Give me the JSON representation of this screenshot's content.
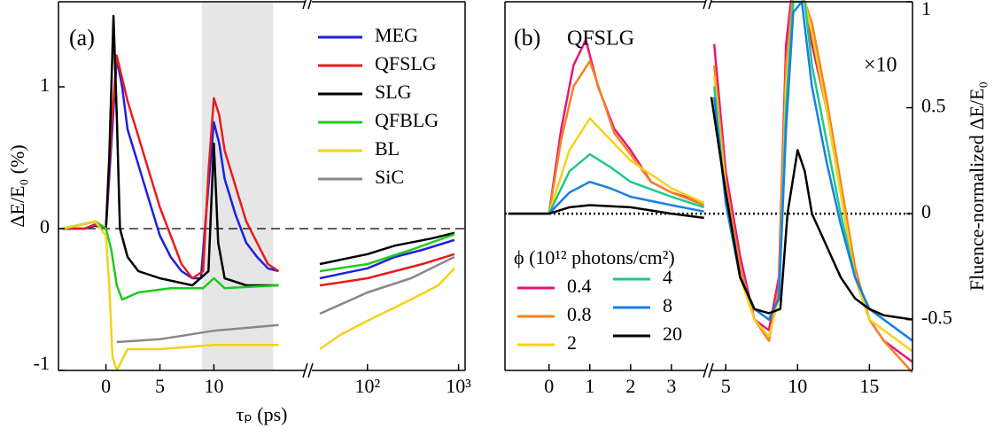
{
  "chart_data": [
    {
      "type": "line",
      "panel_label": "(a)",
      "xlabel": "τₚ (ps)",
      "ylabel": "ΔE/E₀ (%)",
      "x_segments": [
        [
          -4.4,
          18.5
        ],
        [
          24.5,
          1180
        ]
      ],
      "x_scales": [
        "linear",
        "log"
      ],
      "xticks": [
        0,
        5,
        10,
        {
          "value": 100,
          "label": "10²"
        },
        {
          "value": 1000,
          "label": "10³"
        }
      ],
      "ylim": [
        -1,
        1.6
      ],
      "yticks": [
        -1,
        0,
        1
      ],
      "zero_line": "dashed",
      "shaded_x": [
        8.9,
        15.5
      ],
      "legend": "upper right",
      "series": [
        {
          "name": "MEG",
          "color": "#1f1fe0",
          "x": [
            -4,
            -2,
            -1,
            0,
            0.5,
            1,
            1.5,
            2,
            3,
            4,
            5,
            6,
            7,
            8,
            8.8,
            9.5,
            10,
            10.5,
            11,
            12,
            13,
            14,
            15,
            16,
            null,
            30,
            50,
            100,
            200,
            400,
            900
          ],
          "values": [
            0,
            0,
            0.02,
            0,
            0.6,
            1.2,
            1.0,
            0.7,
            0.45,
            0.2,
            -0.05,
            -0.2,
            -0.3,
            -0.35,
            -0.35,
            0.3,
            0.75,
            0.6,
            0.35,
            0.1,
            -0.1,
            -0.2,
            -0.28,
            -0.3,
            null,
            -0.35,
            -0.32,
            -0.28,
            -0.2,
            -0.15,
            -0.08
          ]
        },
        {
          "name": "QFSLG",
          "color": "#e81c1c",
          "x": [
            -4,
            -2,
            -1,
            0,
            0.5,
            1,
            2,
            3,
            4,
            5,
            6,
            7,
            8,
            9,
            9.5,
            10,
            10.5,
            11,
            12,
            13,
            14,
            15,
            16,
            null,
            30,
            50,
            100,
            200,
            400,
            900
          ],
          "values": [
            0,
            0,
            0.03,
            0,
            0.7,
            1.22,
            0.9,
            0.65,
            0.4,
            0.15,
            -0.05,
            -0.25,
            -0.35,
            -0.3,
            0.4,
            0.92,
            0.8,
            0.55,
            0.3,
            0.05,
            -0.1,
            -0.25,
            -0.3,
            null,
            -0.4,
            -0.38,
            -0.35,
            -0.3,
            -0.25,
            -0.18
          ]
        },
        {
          "name": "SLG",
          "color": "#000000",
          "x": [
            -4,
            -1,
            0,
            0.3,
            0.7,
            1,
            1.3,
            2,
            3,
            5,
            8,
            9.5,
            10,
            10.4,
            11,
            13,
            16,
            null,
            30,
            50,
            100,
            200,
            500,
            900
          ],
          "values": [
            0,
            0.05,
            0,
            0.5,
            1.5,
            0.8,
            0,
            -0.2,
            -0.3,
            -0.35,
            -0.4,
            -0.3,
            0.6,
            -0.1,
            -0.35,
            -0.4,
            -0.4,
            null,
            -0.25,
            -0.22,
            -0.18,
            -0.12,
            -0.07,
            -0.03
          ]
        },
        {
          "name": "QFBLG",
          "color": "#1ccc1c",
          "x": [
            -4,
            -1,
            0,
            0.5,
            1,
            1.5,
            3,
            6,
            9,
            10,
            11,
            16,
            null,
            30,
            100,
            300,
            900
          ],
          "values": [
            0,
            0.05,
            0,
            -0.15,
            -0.4,
            -0.5,
            -0.45,
            -0.42,
            -0.42,
            -0.35,
            -0.42,
            -0.4,
            null,
            -0.3,
            -0.25,
            -0.15,
            -0.04
          ]
        },
        {
          "name": "BL",
          "color": "#f2d21a",
          "x": [
            -4,
            -1,
            0,
            0.3,
            0.6,
            1,
            2,
            5,
            10,
            16,
            null,
            30,
            50,
            100,
            300,
            600,
            900
          ],
          "values": [
            0,
            0.05,
            -0.05,
            -0.4,
            -0.9,
            -1.0,
            -0.85,
            -0.85,
            -0.82,
            -0.82,
            null,
            -0.85,
            -0.75,
            -0.65,
            -0.5,
            -0.4,
            -0.28
          ]
        },
        {
          "name": "SiC",
          "color": "#888888",
          "x": [
            1,
            5,
            10,
            16,
            null,
            30,
            100,
            300,
            900
          ],
          "values": [
            -0.8,
            -0.78,
            -0.72,
            -0.68,
            null,
            -0.6,
            -0.45,
            -0.35,
            -0.2
          ]
        }
      ]
    },
    {
      "type": "line",
      "panel_label": "(b)",
      "ylabel": "Fluence-normalized ΔE/E₀",
      "annotations": [
        "QFSLG",
        "×10"
      ],
      "x_segments": [
        [
          -1.08,
          3.85
        ],
        [
          4,
          18
        ]
      ],
      "x_scales": [
        "linear",
        "linear"
      ],
      "xticks": [
        0,
        1,
        2,
        3,
        5,
        10,
        15
      ],
      "ylim": [
        -0.74,
        1
      ],
      "yticks": [
        -0.5,
        0,
        0.5,
        1
      ],
      "zero_line": "dotted",
      "legend_title": "ϕ (10¹² photons/cm²)",
      "legend_columns": 2,
      "series": [
        {
          "name": "0.4",
          "color": "#e6177a",
          "x": [
            -1,
            0,
            0.3,
            0.6,
            0.9,
            1.2,
            1.6,
            2,
            2.5,
            3,
            3.5,
            3.8,
            null,
            4.2,
            5,
            6,
            7,
            8,
            8.7,
            9.2,
            9.7,
            10.5,
            11,
            12,
            13,
            14,
            15,
            16,
            17,
            18
          ],
          "values": [
            0,
            0,
            0.4,
            0.7,
            0.82,
            0.6,
            0.4,
            0.3,
            0.15,
            0.1,
            0.07,
            0.05,
            null,
            0.8,
            0.2,
            -0.2,
            -0.5,
            -0.55,
            -0.3,
            0.8,
            1.1,
            1.0,
            0.8,
            0.5,
            0.1,
            -0.3,
            -0.5,
            -0.6,
            -0.65,
            -0.7
          ]
        },
        {
          "name": "0.8",
          "color": "#f58220",
          "x": [
            -1,
            0,
            0.3,
            0.6,
            1,
            1.3,
            1.6,
            2,
            2.5,
            3,
            3.8,
            null,
            4.2,
            5,
            6,
            7,
            8,
            8.7,
            9.2,
            9.7,
            10.5,
            11,
            12,
            13,
            14,
            15,
            16,
            18
          ],
          "values": [
            0,
            0,
            0.35,
            0.6,
            0.72,
            0.55,
            0.38,
            0.28,
            0.15,
            0.1,
            0.04,
            null,
            0.7,
            0.15,
            -0.25,
            -0.5,
            -0.6,
            -0.35,
            0.7,
            1.05,
            1.0,
            0.9,
            0.55,
            0.15,
            -0.25,
            -0.5,
            -0.6,
            -0.75
          ]
        },
        {
          "name": "2",
          "color": "#f5d21a",
          "x": [
            -1,
            0,
            0.5,
            1,
            1.5,
            2,
            3,
            3.8,
            null,
            4.2,
            5,
            6,
            7,
            8,
            8.7,
            9.2,
            9.7,
            10.5,
            11,
            12,
            13,
            14,
            15,
            16,
            18
          ],
          "values": [
            0,
            0,
            0.3,
            0.45,
            0.35,
            0.25,
            0.12,
            0.05,
            null,
            0.65,
            0.1,
            -0.3,
            -0.5,
            -0.58,
            -0.4,
            0.6,
            1.0,
            1.0,
            0.85,
            0.5,
            0.1,
            -0.3,
            -0.5,
            -0.55,
            -0.65
          ]
        },
        {
          "name": "4",
          "color": "#1cc98a",
          "x": [
            -1,
            0,
            0.5,
            1,
            1.5,
            2,
            3,
            3.8,
            null,
            4.2,
            5,
            6,
            7,
            8,
            8.7,
            9.2,
            9.7,
            10.5,
            11,
            12,
            13,
            14,
            15,
            16,
            18
          ],
          "values": [
            0,
            0,
            0.2,
            0.28,
            0.22,
            0.15,
            0.08,
            0.03,
            null,
            0.6,
            0.05,
            -0.3,
            -0.45,
            -0.5,
            -0.4,
            0.5,
            1.0,
            1.0,
            0.7,
            0.35,
            0,
            -0.3,
            -0.45,
            -0.5,
            -0.6
          ]
        },
        {
          "name": "8",
          "color": "#1a7fe0",
          "x": [
            -1,
            0,
            0.5,
            1,
            1.5,
            2,
            3,
            3.8,
            null,
            4.2,
            5,
            6,
            7,
            8,
            8.7,
            9.2,
            9.7,
            10.3,
            11,
            12,
            13,
            14,
            15,
            16,
            18
          ],
          "values": [
            0,
            0,
            0.1,
            0.15,
            0.12,
            0.08,
            0.04,
            0.01,
            null,
            0.55,
            0.05,
            -0.3,
            -0.45,
            -0.5,
            -0.4,
            0.4,
            0.95,
            1.0,
            0.6,
            0.25,
            -0.05,
            -0.3,
            -0.45,
            -0.5,
            -0.6
          ]
        },
        {
          "name": "20",
          "color": "#000000",
          "x": [
            -1,
            0,
            0.5,
            1,
            2,
            3,
            3.8,
            null,
            4,
            5,
            6,
            7,
            8,
            8.8,
            9.3,
            10,
            10.5,
            11,
            12,
            13,
            14,
            15,
            16,
            18
          ],
          "values": [
            0,
            0,
            0.03,
            0.04,
            0.03,
            0,
            -0.02,
            null,
            0.55,
            0.1,
            -0.3,
            -0.45,
            -0.47,
            -0.45,
            0,
            0.3,
            0.2,
            0,
            -0.15,
            -0.3,
            -0.4,
            -0.45,
            -0.48,
            -0.5
          ]
        }
      ]
    }
  ]
}
